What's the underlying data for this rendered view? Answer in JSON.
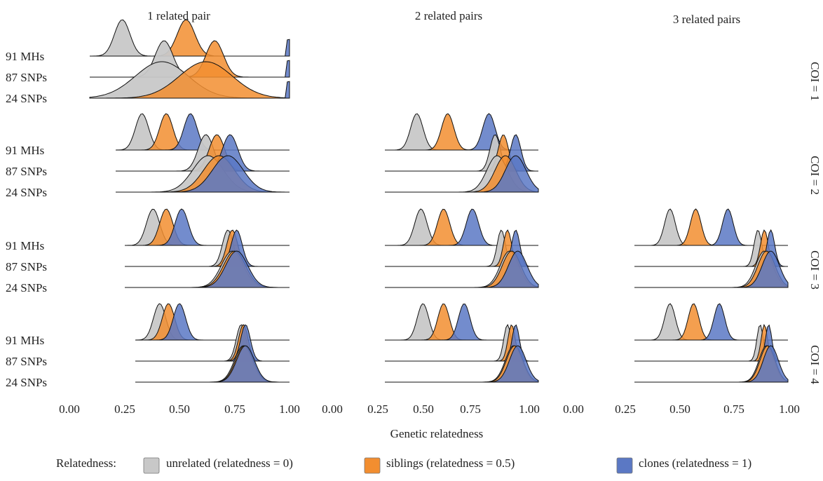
{
  "chart_data": {
    "type": "area",
    "subtype": "ridgeline density",
    "xlabel": "Genetic relatedness",
    "columns": [
      "1 related pair",
      "2 related pairs",
      "3 related pairs"
    ],
    "rows": [
      "COI = 1",
      "COI = 2",
      "COI = 3",
      "COI = 4"
    ],
    "marker_sets": [
      "91 MHs",
      "87 SNPs",
      "24 SNPs"
    ],
    "x_ticks": [
      "0.00",
      "0.25",
      "0.50",
      "0.75",
      "1.00"
    ],
    "x_ticks_short": [
      "0.25",
      "0.50",
      "0.75",
      "1.00"
    ],
    "legend": {
      "title": "Relatedness:",
      "items": [
        {
          "key": "unrelated",
          "label": "unrelated (relatedness = 0)",
          "color": "#c8c8c8"
        },
        {
          "key": "siblings",
          "label": "siblings (relatedness = 0.5)",
          "color": "#f28e30"
        },
        {
          "key": "clones",
          "label": "clones (relatedness = 1)",
          "color": "#5b78c4"
        }
      ]
    },
    "panels": [
      {
        "row": 0,
        "col": 0,
        "xlim": [
          0,
          1
        ],
        "ridges": [
          {
            "markers": "91 MHs",
            "unrelated": {
              "mean": 0.24,
              "sd": 0.035
            },
            "siblings": {
              "mean": 0.53,
              "sd": 0.04
            },
            "clones": {
              "mean": 0.995,
              "sd": 0.004
            }
          },
          {
            "markers": "87 SNPs",
            "unrelated": {
              "mean": 0.43,
              "sd": 0.04
            },
            "siblings": {
              "mean": 0.66,
              "sd": 0.04
            },
            "clones": {
              "mean": 0.995,
              "sd": 0.004
            }
          },
          {
            "markers": "24 SNPs",
            "unrelated": {
              "mean": 0.42,
              "sd": 0.12
            },
            "siblings": {
              "mean": 0.62,
              "sd": 0.12
            },
            "clones": {
              "mean": 0.995,
              "sd": 0.004
            }
          }
        ]
      },
      {
        "row": 1,
        "col": 0,
        "xlim": [
          0.2,
          1
        ],
        "ridges": [
          {
            "markers": "91 MHs",
            "unrelated": {
              "mean": 0.33,
              "sd": 0.03
            },
            "siblings": {
              "mean": 0.44,
              "sd": 0.03
            },
            "clones": {
              "mean": 0.55,
              "sd": 0.03
            }
          },
          {
            "markers": "87 SNPs",
            "unrelated": {
              "mean": 0.62,
              "sd": 0.035
            },
            "siblings": {
              "mean": 0.67,
              "sd": 0.035
            },
            "clones": {
              "mean": 0.73,
              "sd": 0.035
            }
          },
          {
            "markers": "24 SNPs",
            "unrelated": {
              "mean": 0.63,
              "sd": 0.07
            },
            "siblings": {
              "mean": 0.68,
              "sd": 0.07
            },
            "clones": {
              "mean": 0.72,
              "sd": 0.07
            }
          }
        ]
      },
      {
        "row": 1,
        "col": 1,
        "xlim": [
          0.2,
          1
        ],
        "ridges": [
          {
            "markers": "91 MHs",
            "unrelated": {
              "mean": 0.41,
              "sd": 0.03
            },
            "siblings": {
              "mean": 0.56,
              "sd": 0.03
            },
            "clones": {
              "mean": 0.76,
              "sd": 0.03
            }
          },
          {
            "markers": "87 SNPs",
            "unrelated": {
              "mean": 0.79,
              "sd": 0.025
            },
            "siblings": {
              "mean": 0.83,
              "sd": 0.025
            },
            "clones": {
              "mean": 0.89,
              "sd": 0.025
            }
          },
          {
            "markers": "24 SNPs",
            "unrelated": {
              "mean": 0.8,
              "sd": 0.05
            },
            "siblings": {
              "mean": 0.84,
              "sd": 0.05
            },
            "clones": {
              "mean": 0.89,
              "sd": 0.05
            }
          }
        ]
      },
      {
        "row": 2,
        "col": 0,
        "xlim": [
          0.2,
          1
        ],
        "ridges": [
          {
            "markers": "91 MHs",
            "unrelated": {
              "mean": 0.38,
              "sd": 0.03
            },
            "siblings": {
              "mean": 0.44,
              "sd": 0.03
            },
            "clones": {
              "mean": 0.51,
              "sd": 0.03
            }
          },
          {
            "markers": "87 SNPs",
            "unrelated": {
              "mean": 0.72,
              "sd": 0.025
            },
            "siblings": {
              "mean": 0.74,
              "sd": 0.025
            },
            "clones": {
              "mean": 0.76,
              "sd": 0.025
            }
          },
          {
            "markers": "24 SNPs",
            "unrelated": {
              "mean": 0.74,
              "sd": 0.05
            },
            "siblings": {
              "mean": 0.75,
              "sd": 0.05
            },
            "clones": {
              "mean": 0.76,
              "sd": 0.05
            }
          }
        ]
      },
      {
        "row": 2,
        "col": 1,
        "xlim": [
          0.2,
          1
        ],
        "ridges": [
          {
            "markers": "91 MHs",
            "unrelated": {
              "mean": 0.43,
              "sd": 0.03
            },
            "siblings": {
              "mean": 0.54,
              "sd": 0.03
            },
            "clones": {
              "mean": 0.68,
              "sd": 0.03
            }
          },
          {
            "markers": "87 SNPs",
            "unrelated": {
              "mean": 0.82,
              "sd": 0.02
            },
            "siblings": {
              "mean": 0.85,
              "sd": 0.02
            },
            "clones": {
              "mean": 0.89,
              "sd": 0.02
            }
          },
          {
            "markers": "24 SNPs",
            "unrelated": {
              "mean": 0.86,
              "sd": 0.045
            },
            "siblings": {
              "mean": 0.87,
              "sd": 0.045
            },
            "clones": {
              "mean": 0.9,
              "sd": 0.045
            }
          }
        ]
      },
      {
        "row": 2,
        "col": 2,
        "xlim": [
          0.2,
          1
        ],
        "ridges": [
          {
            "markers": "91 MHs",
            "unrelated": {
              "mean": 0.45,
              "sd": 0.025
            },
            "siblings": {
              "mean": 0.57,
              "sd": 0.025
            },
            "clones": {
              "mean": 0.72,
              "sd": 0.025
            }
          },
          {
            "markers": "87 SNPs",
            "unrelated": {
              "mean": 0.86,
              "sd": 0.018
            },
            "siblings": {
              "mean": 0.89,
              "sd": 0.018
            },
            "clones": {
              "mean": 0.92,
              "sd": 0.018
            }
          },
          {
            "markers": "24 SNPs",
            "unrelated": {
              "mean": 0.89,
              "sd": 0.04
            },
            "siblings": {
              "mean": 0.9,
              "sd": 0.04
            },
            "clones": {
              "mean": 0.92,
              "sd": 0.04
            }
          }
        ]
      },
      {
        "row": 3,
        "col": 0,
        "xlim": [
          0.2,
          1
        ],
        "ridges": [
          {
            "markers": "91 MHs",
            "unrelated": {
              "mean": 0.41,
              "sd": 0.028
            },
            "siblings": {
              "mean": 0.45,
              "sd": 0.028
            },
            "clones": {
              "mean": 0.5,
              "sd": 0.028
            }
          },
          {
            "markers": "87 SNPs",
            "unrelated": {
              "mean": 0.78,
              "sd": 0.022
            },
            "siblings": {
              "mean": 0.79,
              "sd": 0.022
            },
            "clones": {
              "mean": 0.8,
              "sd": 0.022
            }
          },
          {
            "markers": "24 SNPs",
            "unrelated": {
              "mean": 0.79,
              "sd": 0.04
            },
            "siblings": {
              "mean": 0.795,
              "sd": 0.04
            },
            "clones": {
              "mean": 0.8,
              "sd": 0.04
            }
          }
        ]
      },
      {
        "row": 3,
        "col": 1,
        "xlim": [
          0.2,
          1
        ],
        "ridges": [
          {
            "markers": "91 MHs",
            "unrelated": {
              "mean": 0.44,
              "sd": 0.028
            },
            "siblings": {
              "mean": 0.54,
              "sd": 0.028
            },
            "clones": {
              "mean": 0.64,
              "sd": 0.028
            }
          },
          {
            "markers": "87 SNPs",
            "unrelated": {
              "mean": 0.85,
              "sd": 0.018
            },
            "siblings": {
              "mean": 0.87,
              "sd": 0.018
            },
            "clones": {
              "mean": 0.89,
              "sd": 0.018
            }
          },
          {
            "markers": "24 SNPs",
            "unrelated": {
              "mean": 0.88,
              "sd": 0.04
            },
            "siblings": {
              "mean": 0.885,
              "sd": 0.04
            },
            "clones": {
              "mean": 0.9,
              "sd": 0.04
            }
          }
        ]
      },
      {
        "row": 3,
        "col": 2,
        "xlim": [
          0.2,
          1
        ],
        "ridges": [
          {
            "markers": "91 MHs",
            "unrelated": {
              "mean": 0.45,
              "sd": 0.025
            },
            "siblings": {
              "mean": 0.56,
              "sd": 0.025
            },
            "clones": {
              "mean": 0.68,
              "sd": 0.025
            }
          },
          {
            "markers": "87 SNPs",
            "unrelated": {
              "mean": 0.87,
              "sd": 0.015
            },
            "siblings": {
              "mean": 0.89,
              "sd": 0.015
            },
            "clones": {
              "mean": 0.91,
              "sd": 0.015
            }
          },
          {
            "markers": "24 SNPs",
            "unrelated": {
              "mean": 0.9,
              "sd": 0.035
            },
            "siblings": {
              "mean": 0.905,
              "sd": 0.035
            },
            "clones": {
              "mean": 0.92,
              "sd": 0.035
            }
          }
        ]
      }
    ]
  }
}
